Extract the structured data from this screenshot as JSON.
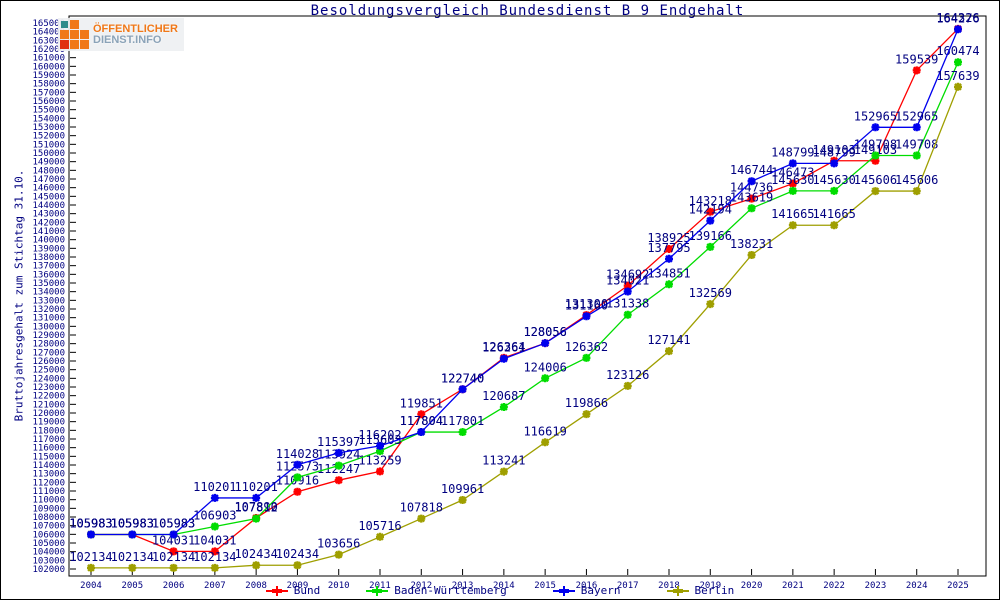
{
  "chart_data": {
    "type": "line",
    "title": "Besoldungsvergleich Bundesdienst B 9 Endgehalt",
    "ylabel": "Bruttojahresgehalt zum Stichtag 31.10.",
    "ylim": [
      102000,
      165000
    ],
    "ytick_step": 1000,
    "grid": false,
    "legend_position": "bottom",
    "label_color": "#000080",
    "axis_color": "#000000",
    "x": [
      2004,
      2005,
      2006,
      2007,
      2008,
      2009,
      2010,
      2011,
      2012,
      2013,
      2014,
      2015,
      2016,
      2017,
      2018,
      2019,
      2020,
      2021,
      2022,
      2023,
      2024,
      2025
    ],
    "series": [
      {
        "name": "Bund",
        "color": "#ff0000",
        "values": [
          105983,
          105983,
          104031,
          104031,
          107890,
          110916,
          112247,
          113259,
          119851,
          122740,
          126364,
          128056,
          131300,
          134692,
          138925,
          143218,
          144736,
          146473,
          149103,
          149103,
          159539,
          164326
        ]
      },
      {
        "name": "Baden-Württemberg",
        "color": "#00dd00",
        "values": [
          105983,
          105983,
          105983,
          106903,
          107812,
          112573,
          113924,
          115603,
          117804,
          117801,
          120687,
          124006,
          126362,
          131338,
          134851,
          139166,
          143619,
          145630,
          145630,
          149708,
          149708,
          160474
        ]
      },
      {
        "name": "Bayern",
        "color": "#0000ee",
        "values": [
          105983,
          105983,
          105983,
          110201,
          110201,
          114028,
          115397,
          116202,
          117804,
          122740,
          126261,
          128056,
          131160,
          134021,
          137795,
          142194,
          146744,
          148799,
          148799,
          152965,
          152965,
          164276
        ]
      },
      {
        "name": "Berlin",
        "color": "#9f9f00",
        "values": [
          102134,
          102134,
          102134,
          102134,
          102434,
          102434,
          103656,
          105716,
          107818,
          109961,
          113241,
          116619,
          119866,
          123126,
          127141,
          132569,
          138231,
          141665,
          141665,
          145606,
          145606,
          157639
        ]
      }
    ]
  },
  "logo": {
    "line1": "ÖFFENTLICHER",
    "line2": "DIENST.INFO"
  }
}
